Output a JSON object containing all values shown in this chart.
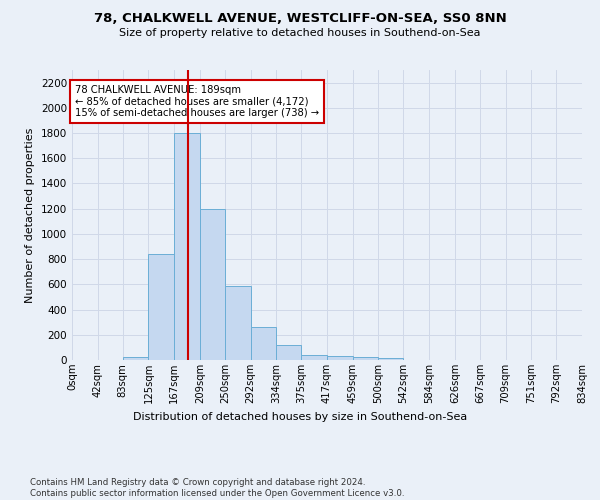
{
  "title_line1": "78, CHALKWELL AVENUE, WESTCLIFF-ON-SEA, SS0 8NN",
  "title_line2": "Size of property relative to detached houses in Southend-on-Sea",
  "xlabel": "Distribution of detached houses by size in Southend-on-Sea",
  "ylabel": "Number of detached properties",
  "footnote": "Contains HM Land Registry data © Crown copyright and database right 2024.\nContains public sector information licensed under the Open Government Licence v3.0.",
  "bin_edges": [
    0,
    42,
    83,
    125,
    167,
    209,
    250,
    292,
    334,
    375,
    417,
    459,
    500,
    542,
    584,
    626,
    667,
    709,
    751,
    792,
    834
  ],
  "bin_labels": [
    "0sqm",
    "42sqm",
    "83sqm",
    "125sqm",
    "167sqm",
    "209sqm",
    "250sqm",
    "292sqm",
    "334sqm",
    "375sqm",
    "417sqm",
    "459sqm",
    "500sqm",
    "542sqm",
    "584sqm",
    "626sqm",
    "667sqm",
    "709sqm",
    "751sqm",
    "792sqm",
    "834sqm"
  ],
  "bar_heights": [
    0,
    0,
    25,
    840,
    1800,
    1200,
    590,
    260,
    120,
    40,
    35,
    25,
    15,
    0,
    0,
    0,
    0,
    0,
    0,
    0
  ],
  "bar_color": "#c5d8f0",
  "bar_edge_color": "#6baed6",
  "property_size": 189,
  "vline_color": "#cc0000",
  "annotation_line1": "78 CHALKWELL AVENUE: 189sqm",
  "annotation_line2": "← 85% of detached houses are smaller (4,172)",
  "annotation_line3": "15% of semi-detached houses are larger (738) →",
  "annotation_box_color": "#ffffff",
  "annotation_box_edge": "#cc0000",
  "ylim": [
    0,
    2300
  ],
  "yticks": [
    0,
    200,
    400,
    600,
    800,
    1000,
    1200,
    1400,
    1600,
    1800,
    2000,
    2200
  ],
  "grid_color": "#d0d8e8",
  "background_color": "#eaf0f8"
}
